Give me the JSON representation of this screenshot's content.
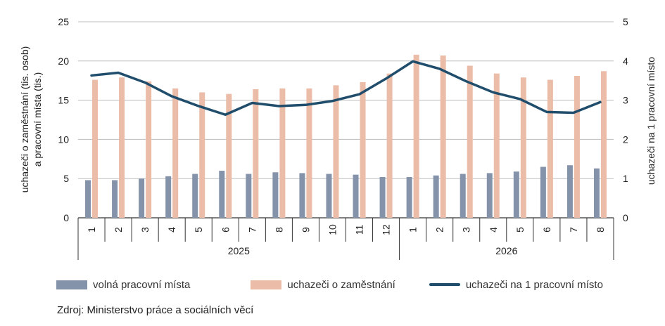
{
  "chart_data": {
    "type": "bar",
    "categories": [
      "1",
      "2",
      "3",
      "4",
      "5",
      "6",
      "7",
      "8",
      "9",
      "10",
      "11",
      "12",
      "1",
      "2",
      "3",
      "4",
      "5",
      "6",
      "7",
      "8"
    ],
    "groups": [
      {
        "label": "2025",
        "count": 12
      },
      {
        "label": "2026",
        "count": 8
      }
    ],
    "series": [
      {
        "name": "volná pracovní místa",
        "type": "bar",
        "axis": "left",
        "color": "#8593aa",
        "values": [
          4.8,
          4.8,
          5.0,
          5.3,
          5.6,
          6.0,
          5.6,
          5.8,
          5.7,
          5.6,
          5.5,
          5.2,
          5.2,
          5.4,
          5.6,
          5.7,
          5.9,
          6.5,
          6.7,
          6.3
        ]
      },
      {
        "name": "uchazeči o zaměstnání",
        "type": "bar",
        "axis": "left",
        "color": "#ebbca8",
        "values": [
          17.6,
          17.9,
          17.4,
          16.5,
          16.0,
          15.8,
          16.4,
          16.5,
          16.5,
          16.9,
          17.3,
          18.4,
          20.8,
          20.7,
          19.4,
          18.4,
          17.9,
          17.6,
          18.1,
          18.7
        ]
      },
      {
        "name": "uchazeči na 1 pracovní místo",
        "type": "line",
        "axis": "right",
        "color": "#1f4d6b",
        "values": [
          3.63,
          3.7,
          3.45,
          3.1,
          2.85,
          2.63,
          2.93,
          2.85,
          2.88,
          2.98,
          3.15,
          3.55,
          3.99,
          3.8,
          3.48,
          3.2,
          3.03,
          2.7,
          2.68,
          2.95
        ]
      }
    ],
    "y_left": {
      "label": "uchazeči o zaměstnání (tis. osob)\na pracovní místa (tis.)",
      "ylim": [
        0,
        25
      ],
      "ticks": [
        "0",
        "5",
        "10",
        "15",
        "20",
        "25"
      ]
    },
    "y_right": {
      "label": "uchazeči na 1 pracovní místo",
      "ylim": [
        0,
        5
      ],
      "ticks": [
        "0",
        "1",
        "2",
        "3",
        "4",
        "5"
      ]
    },
    "grid": true,
    "legend_position": "bottom"
  },
  "legend": {
    "items": [
      {
        "label": "volná pracovní místa",
        "color": "#8593aa",
        "kind": "bar"
      },
      {
        "label": "uchazeči o zaměstnání",
        "color": "#ebbca8",
        "kind": "bar"
      },
      {
        "label": "uchazeči na 1 pracovní místo",
        "color": "#1f4d6b",
        "kind": "line"
      }
    ]
  },
  "source": "Zdroj: Ministerstvo práce a sociálních věcí"
}
